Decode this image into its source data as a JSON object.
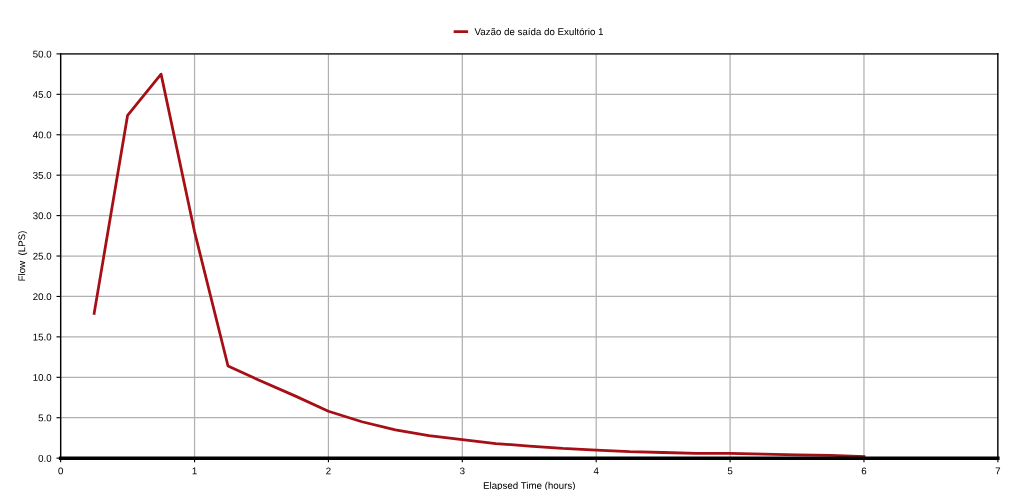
{
  "chart_data": {
    "type": "line",
    "xlabel": "Elapsed Time (hours)",
    "ylabel": "Flow  (LPS)",
    "x": [
      0.25,
      0.5,
      0.75,
      1.0,
      1.25,
      1.5,
      1.75,
      2.0,
      2.25,
      2.5,
      2.75,
      3.0,
      3.25,
      3.5,
      3.75,
      4.0,
      4.25,
      4.5,
      4.75,
      5.0,
      5.25,
      5.5,
      5.75,
      6.0
    ],
    "series": [
      {
        "name": "Vazão de saída do Exultório 1",
        "color": "#a50f15",
        "values": [
          17.9,
          42.4,
          47.5,
          28.0,
          11.4,
          9.5,
          7.7,
          5.8,
          4.5,
          3.5,
          2.8,
          2.3,
          1.8,
          1.5,
          1.2,
          1.0,
          0.8,
          0.7,
          0.6,
          0.6,
          0.5,
          0.4,
          0.35,
          0.2
        ]
      }
    ],
    "xlim": [
      0,
      7
    ],
    "xticks": [
      0,
      1,
      2,
      3,
      4,
      5,
      6,
      7
    ],
    "ylim": [
      0,
      50
    ],
    "yticks": [
      {
        "value": 0,
        "label": "0.0"
      },
      {
        "value": 5,
        "label": "5.0"
      },
      {
        "value": 10,
        "label": "10.0"
      },
      {
        "value": 15,
        "label": "15.0"
      },
      {
        "value": 20,
        "label": "20.0"
      },
      {
        "value": 25,
        "label": "25.0"
      },
      {
        "value": 30,
        "label": "30.0"
      },
      {
        "value": 35,
        "label": "35.0"
      },
      {
        "value": 40,
        "label": "40.0"
      },
      {
        "value": 45,
        "label": "45.0"
      },
      {
        "value": 50,
        "label": "50.0"
      }
    ],
    "grid": true,
    "legend": "top",
    "marker": "none",
    "line_style": "solid"
  }
}
